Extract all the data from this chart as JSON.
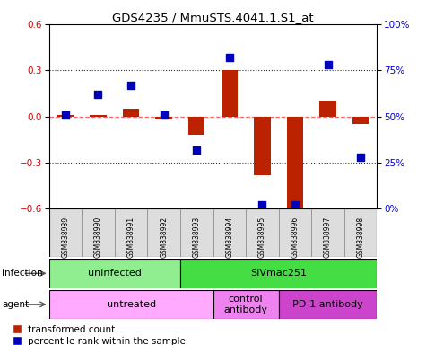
{
  "title": "GDS4235 / MmuSTS.4041.1.S1_at",
  "samples": [
    "GSM838989",
    "GSM838990",
    "GSM838991",
    "GSM838992",
    "GSM838993",
    "GSM838994",
    "GSM838995",
    "GSM838996",
    "GSM838997",
    "GSM838998"
  ],
  "red_values": [
    0.01,
    0.01,
    0.05,
    -0.02,
    -0.12,
    0.3,
    -0.38,
    -0.6,
    0.1,
    -0.05
  ],
  "blue_values_pct": [
    51,
    62,
    67,
    51,
    32,
    82,
    2,
    2,
    78,
    28
  ],
  "ylim_left": [
    -0.6,
    0.6
  ],
  "ylim_right": [
    0,
    100
  ],
  "yticks_left": [
    -0.6,
    -0.3,
    0.0,
    0.3,
    0.6
  ],
  "yticks_right": [
    0,
    25,
    50,
    75,
    100
  ],
  "ytick_labels_right": [
    "0%",
    "25%",
    "50%",
    "75%",
    "100%"
  ],
  "infection_groups": [
    {
      "label": "uninfected",
      "start": 0,
      "end": 4,
      "color": "#90EE90"
    },
    {
      "label": "SIVmac251",
      "start": 4,
      "end": 10,
      "color": "#44DD44"
    }
  ],
  "agent_groups": [
    {
      "label": "untreated",
      "start": 0,
      "end": 5,
      "color": "#FFAAFF"
    },
    {
      "label": "control\nantibody",
      "start": 5,
      "end": 7,
      "color": "#EE82EE"
    },
    {
      "label": "PD-1 antibody",
      "start": 7,
      "end": 10,
      "color": "#CC44CC"
    }
  ],
  "red_color": "#BB2200",
  "blue_color": "#0000BB",
  "zero_line_color": "#FF6666",
  "dot_line_color": "#333333",
  "bar_width": 0.5,
  "marker_size": 40,
  "infection_label": "infection",
  "agent_label": "agent",
  "legend_red": "transformed count",
  "legend_blue": "percentile rank within the sample",
  "left_label_color": "#CC0000",
  "right_label_color": "#0000CC"
}
